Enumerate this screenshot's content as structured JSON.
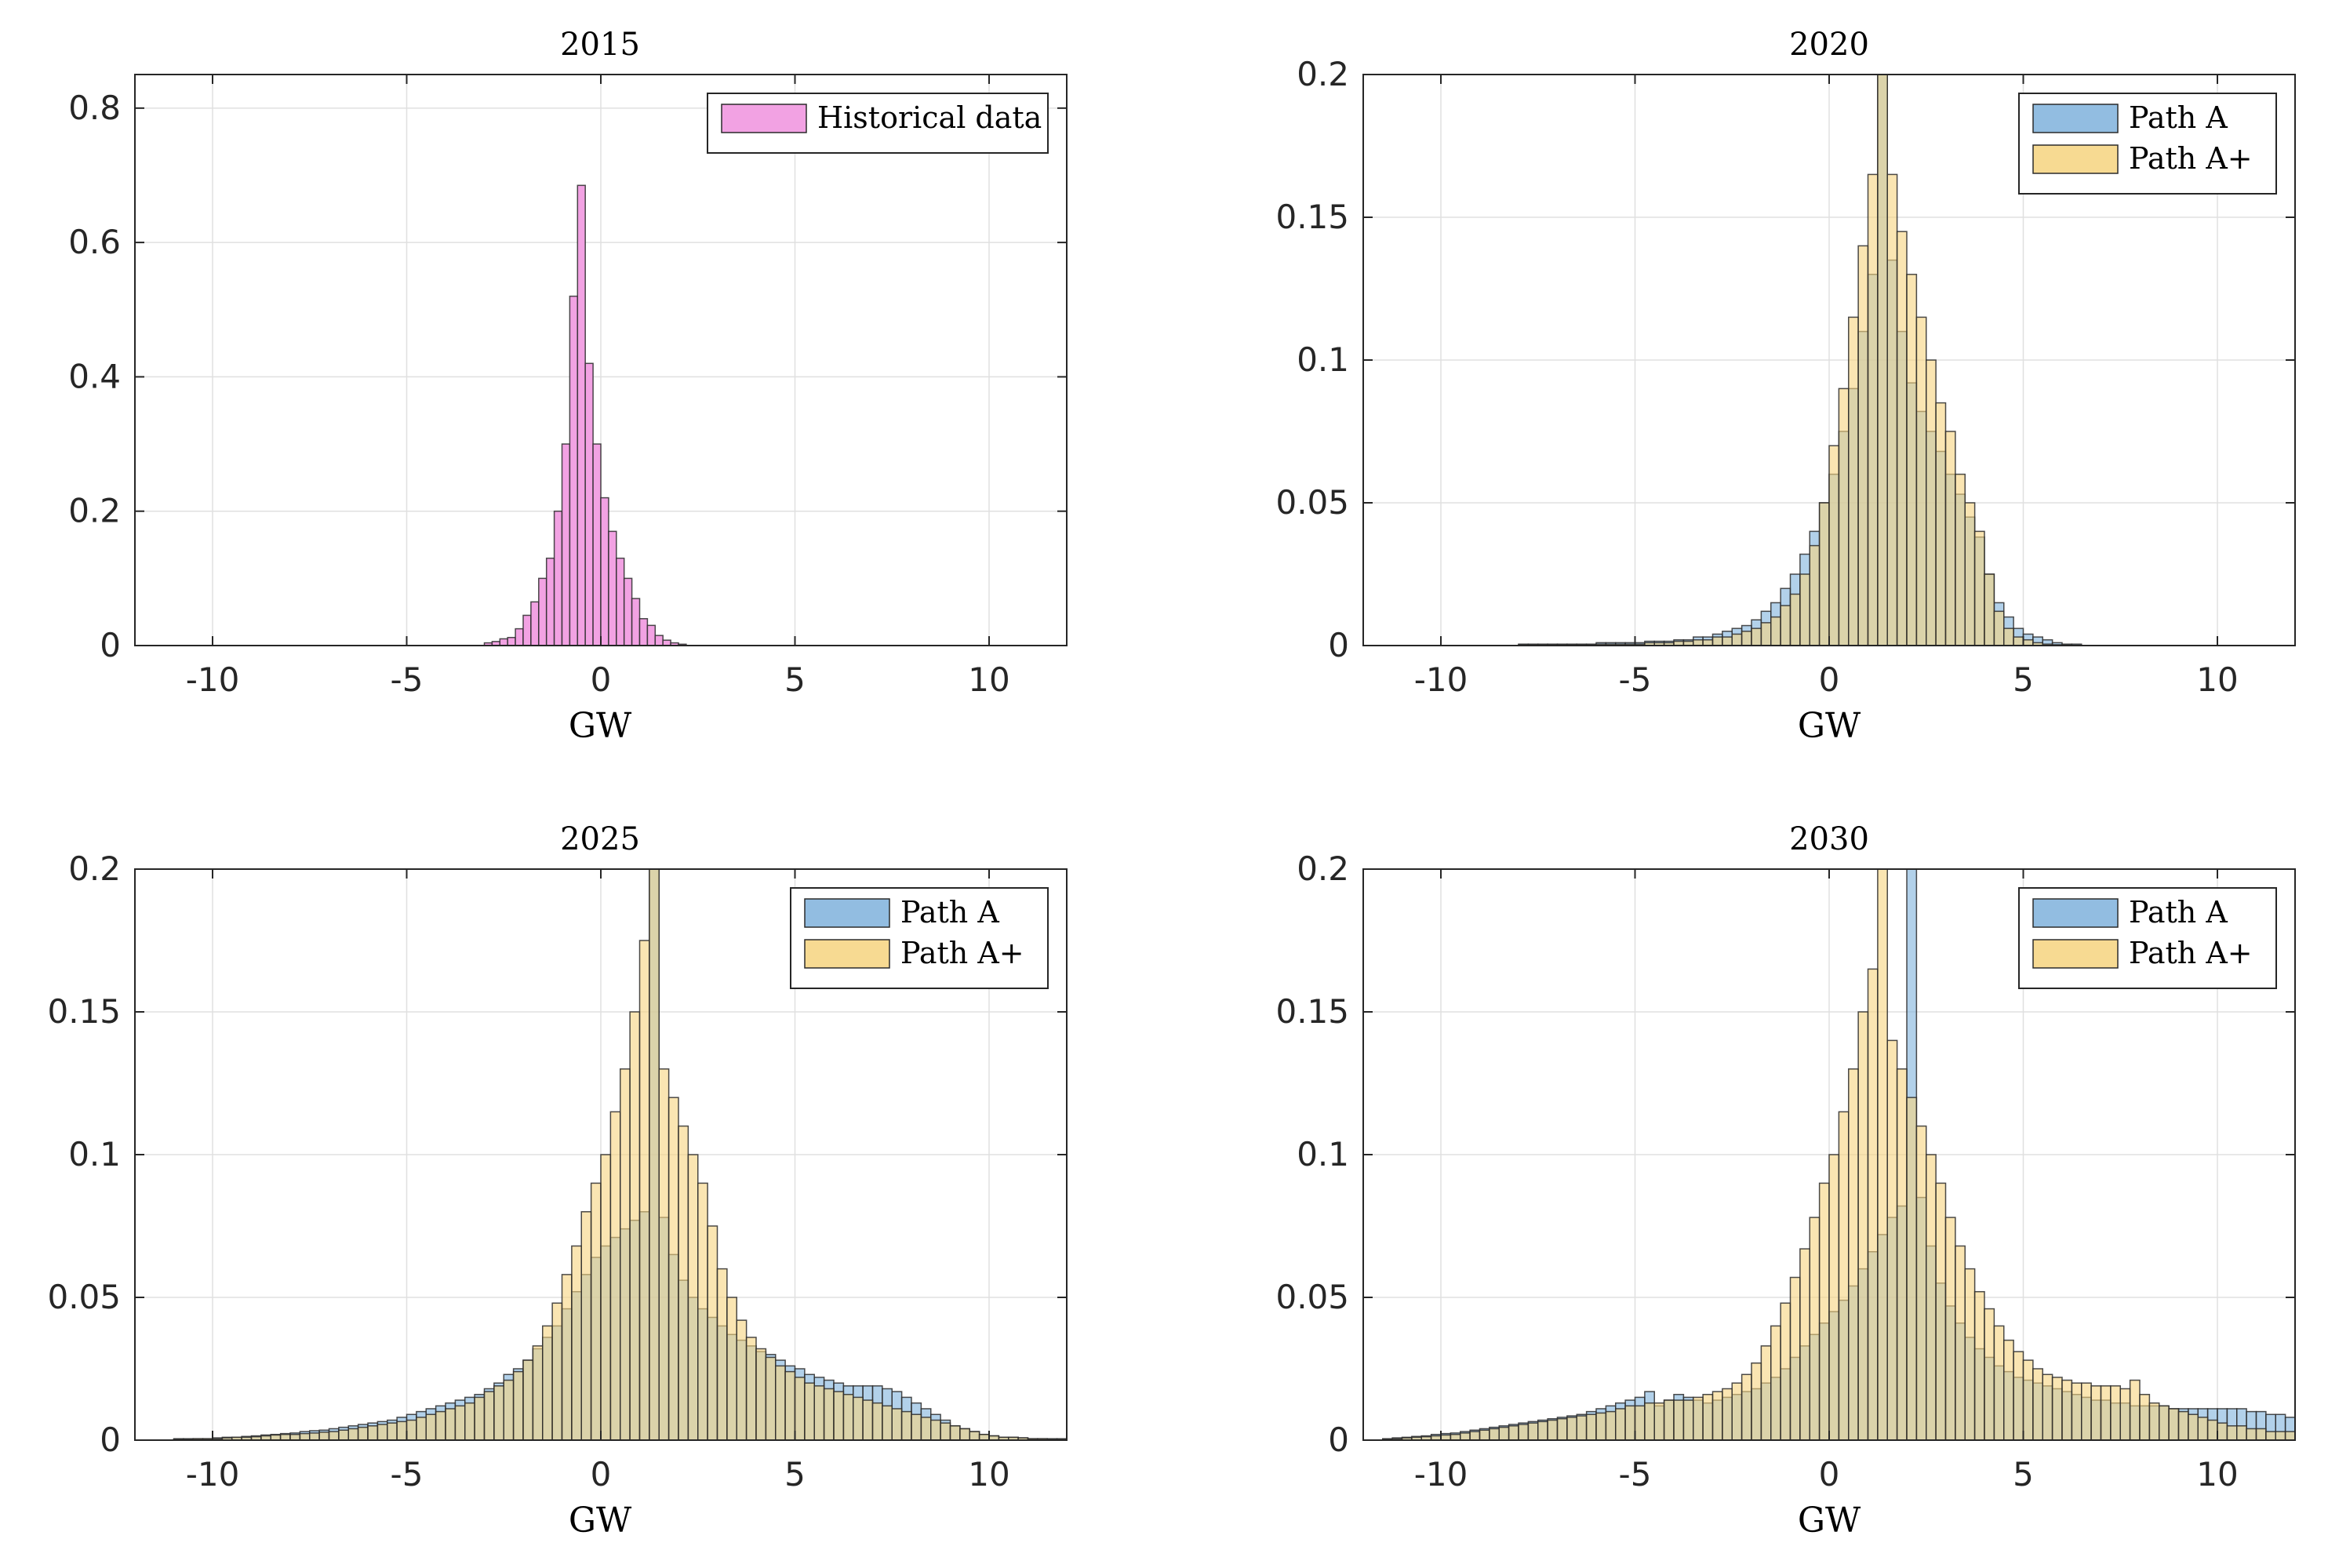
{
  "colors": {
    "historical": "#f2a2e3",
    "path_a": "#7fb2dc",
    "path_a_plus": "#f6d47f",
    "overlap": "#b6b47d",
    "bar_edge": "#2b2b2b",
    "grid": "#e0e0e0",
    "axes": "#262626"
  },
  "chart_data": [
    {
      "type": "bar",
      "title": "2015",
      "xlabel": "GW",
      "ylabel": "",
      "xlim": [
        -12,
        12
      ],
      "ylim": [
        0,
        0.85
      ],
      "xticks": [
        -10,
        -5,
        0,
        5,
        10
      ],
      "xtick_labels": [
        "-10",
        "-5",
        "0",
        "5",
        "10"
      ],
      "yticks": [
        0,
        0.2,
        0.4,
        0.6,
        0.8
      ],
      "ytick_labels": [
        "0",
        "0.2",
        "0.4",
        "0.6",
        "0.8"
      ],
      "grid": true,
      "legend_position": "top-right",
      "bin_width": 0.2,
      "series": [
        {
          "name": "Historical data",
          "color_key": "historical",
          "bin_start": -3.0,
          "values": [
            0.004,
            0.006,
            0.01,
            0.012,
            0.025,
            0.045,
            0.065,
            0.1,
            0.13,
            0.2,
            0.3,
            0.52,
            0.685,
            0.42,
            0.3,
            0.22,
            0.17,
            0.13,
            0.1,
            0.07,
            0.04,
            0.03,
            0.015,
            0.008,
            0.004,
            0.002
          ]
        }
      ]
    },
    {
      "type": "bar",
      "title": "2020",
      "xlabel": "GW",
      "ylabel": "",
      "xlim": [
        -12,
        12
      ],
      "ylim": [
        0,
        0.2
      ],
      "xticks": [
        -10,
        -5,
        0,
        5,
        10
      ],
      "xtick_labels": [
        "-10",
        "-5",
        "0",
        "5",
        "10"
      ],
      "yticks": [
        0,
        0.05,
        0.1,
        0.15,
        0.2
      ],
      "ytick_labels": [
        "0",
        "0.05",
        "0.1",
        "0.15",
        "0.2"
      ],
      "grid": true,
      "legend_position": "top-right",
      "bin_width": 0.25,
      "series": [
        {
          "name": "Path A",
          "color_key": "path_a",
          "bin_start": -8.0,
          "values": [
            0.0005,
            0.0005,
            0.0005,
            0.0005,
            0.0005,
            0.0005,
            0.0005,
            0.0005,
            0.001,
            0.001,
            0.001,
            0.001,
            0.001,
            0.0015,
            0.0015,
            0.0015,
            0.002,
            0.002,
            0.003,
            0.003,
            0.004,
            0.005,
            0.006,
            0.007,
            0.009,
            0.012,
            0.015,
            0.02,
            0.025,
            0.032,
            0.04,
            0.05,
            0.06,
            0.075,
            0.09,
            0.11,
            0.13,
            0.2,
            0.135,
            0.11,
            0.092,
            0.082,
            0.075,
            0.068,
            0.06,
            0.053,
            0.045,
            0.038,
            0.025,
            0.015,
            0.01,
            0.006,
            0.004,
            0.003,
            0.002,
            0.001,
            0.0005,
            0.0005
          ]
        },
        {
          "name": "Path A+",
          "color_key": "path_a_plus",
          "bin_start": -8.0,
          "values": [
            0.0003,
            0.0003,
            0.0003,
            0.0003,
            0.0003,
            0.0003,
            0.0003,
            0.0003,
            0.0005,
            0.0005,
            0.0005,
            0.0005,
            0.0005,
            0.001,
            0.001,
            0.001,
            0.0015,
            0.0015,
            0.002,
            0.002,
            0.003,
            0.003,
            0.004,
            0.005,
            0.006,
            0.008,
            0.01,
            0.014,
            0.018,
            0.025,
            0.035,
            0.05,
            0.07,
            0.09,
            0.115,
            0.14,
            0.165,
            0.2,
            0.165,
            0.145,
            0.13,
            0.115,
            0.1,
            0.085,
            0.075,
            0.06,
            0.05,
            0.04,
            0.025,
            0.012,
            0.006,
            0.003,
            0.002,
            0.001,
            0.0005,
            0.0003,
            0.0002,
            0.0001
          ]
        }
      ]
    },
    {
      "type": "bar",
      "title": "2025",
      "xlabel": "GW",
      "ylabel": "",
      "xlim": [
        -12,
        12
      ],
      "ylim": [
        0,
        0.2
      ],
      "xticks": [
        -10,
        -5,
        0,
        5,
        10
      ],
      "xtick_labels": [
        "-10",
        "-5",
        "0",
        "5",
        "10"
      ],
      "yticks": [
        0,
        0.05,
        0.1,
        0.15,
        0.2
      ],
      "ytick_labels": [
        "0",
        "0.05",
        "0.1",
        "0.15",
        "0.2"
      ],
      "grid": true,
      "legend_position": "top-right",
      "bin_width": 0.25,
      "series": [
        {
          "name": "Path A",
          "color_key": "path_a",
          "bin_start": -11.0,
          "values": [
            0.0005,
            0.0005,
            0.0005,
            0.0005,
            0.0008,
            0.001,
            0.001,
            0.0013,
            0.0015,
            0.0018,
            0.002,
            0.0023,
            0.0025,
            0.003,
            0.0033,
            0.0035,
            0.004,
            0.0045,
            0.005,
            0.0055,
            0.006,
            0.0065,
            0.007,
            0.008,
            0.009,
            0.01,
            0.011,
            0.012,
            0.013,
            0.014,
            0.015,
            0.016,
            0.018,
            0.02,
            0.023,
            0.025,
            0.028,
            0.032,
            0.036,
            0.04,
            0.046,
            0.052,
            0.058,
            0.064,
            0.068,
            0.071,
            0.074,
            0.077,
            0.08,
            0.2,
            0.078,
            0.065,
            0.056,
            0.05,
            0.046,
            0.043,
            0.04,
            0.037,
            0.035,
            0.033,
            0.031,
            0.03,
            0.028,
            0.026,
            0.025,
            0.023,
            0.022,
            0.021,
            0.02,
            0.019,
            0.019,
            0.019,
            0.019,
            0.018,
            0.017,
            0.015,
            0.013,
            0.011,
            0.009,
            0.007,
            0.005,
            0.004,
            0.003,
            0.002,
            0.0015,
            0.001,
            0.001,
            0.0008,
            0.0005,
            0.0005,
            0.0005,
            0.0005,
            0.0005,
            0.0005,
            0.0005,
            0.0005
          ]
        },
        {
          "name": "Path A+",
          "color_key": "path_a_plus",
          "bin_start": -11.0,
          "values": [
            0.0003,
            0.0003,
            0.0005,
            0.0005,
            0.0005,
            0.0008,
            0.001,
            0.001,
            0.0012,
            0.0015,
            0.0018,
            0.002,
            0.002,
            0.0023,
            0.0025,
            0.0028,
            0.003,
            0.0035,
            0.004,
            0.0045,
            0.005,
            0.0055,
            0.006,
            0.0065,
            0.007,
            0.008,
            0.009,
            0.01,
            0.011,
            0.012,
            0.013,
            0.015,
            0.017,
            0.019,
            0.021,
            0.024,
            0.028,
            0.033,
            0.04,
            0.048,
            0.058,
            0.068,
            0.08,
            0.09,
            0.1,
            0.115,
            0.13,
            0.15,
            0.175,
            0.2,
            0.13,
            0.12,
            0.11,
            0.1,
            0.09,
            0.075,
            0.06,
            0.05,
            0.042,
            0.036,
            0.032,
            0.029,
            0.026,
            0.024,
            0.022,
            0.02,
            0.019,
            0.018,
            0.017,
            0.016,
            0.015,
            0.014,
            0.013,
            0.012,
            0.011,
            0.01,
            0.009,
            0.008,
            0.007,
            0.006,
            0.005,
            0.004,
            0.003,
            0.002,
            0.0015,
            0.001,
            0.001,
            0.0008,
            0.0005,
            0.0005,
            0.0003,
            0.0003,
            0.0003,
            0.0003,
            0.0003,
            0.0003
          ]
        }
      ]
    },
    {
      "type": "bar",
      "title": "2030",
      "xlabel": "GW",
      "ylabel": "",
      "xlim": [
        -12,
        12
      ],
      "ylim": [
        0,
        0.2
      ],
      "xticks": [
        -10,
        -5,
        0,
        5,
        10
      ],
      "xtick_labels": [
        "-10",
        "-5",
        "0",
        "5",
        "10"
      ],
      "yticks": [
        0,
        0.05,
        0.1,
        0.15,
        0.2
      ],
      "ytick_labels": [
        "0",
        "0.05",
        "0.1",
        "0.15",
        "0.2"
      ],
      "grid": true,
      "legend_position": "top-right",
      "bin_width": 0.25,
      "series": [
        {
          "name": "Path A",
          "color_key": "path_a",
          "bin_start": -11.5,
          "values": [
            0.0005,
            0.0008,
            0.001,
            0.0013,
            0.0015,
            0.002,
            0.0023,
            0.0025,
            0.003,
            0.0035,
            0.004,
            0.0045,
            0.005,
            0.0055,
            0.006,
            0.0065,
            0.007,
            0.0075,
            0.008,
            0.0085,
            0.009,
            0.01,
            0.011,
            0.012,
            0.013,
            0.014,
            0.015,
            0.017,
            0.012,
            0.014,
            0.016,
            0.015,
            0.014,
            0.013,
            0.014,
            0.015,
            0.016,
            0.017,
            0.018,
            0.02,
            0.022,
            0.025,
            0.029,
            0.033,
            0.037,
            0.041,
            0.045,
            0.049,
            0.054,
            0.06,
            0.066,
            0.072,
            0.078,
            0.082,
            0.2,
            0.085,
            0.068,
            0.055,
            0.047,
            0.041,
            0.036,
            0.032,
            0.029,
            0.026,
            0.024,
            0.022,
            0.021,
            0.02,
            0.019,
            0.018,
            0.017,
            0.016,
            0.015,
            0.014,
            0.014,
            0.013,
            0.013,
            0.012,
            0.012,
            0.012,
            0.012,
            0.011,
            0.011,
            0.011,
            0.011,
            0.011,
            0.011,
            0.011,
            0.011,
            0.01,
            0.01,
            0.009,
            0.009,
            0.008,
            0.008,
            0.007,
            0.007,
            0.006,
            0.006,
            0.005,
            0.005,
            0.004,
            0.004,
            0.003,
            0.003,
            0.002,
            0.002
          ]
        },
        {
          "name": "Path A+",
          "color_key": "path_a_plus",
          "bin_start": -11.5,
          "values": [
            0.0003,
            0.0005,
            0.0008,
            0.001,
            0.0012,
            0.0015,
            0.0018,
            0.002,
            0.0025,
            0.003,
            0.0035,
            0.004,
            0.0045,
            0.005,
            0.0055,
            0.006,
            0.0065,
            0.007,
            0.0075,
            0.008,
            0.0085,
            0.009,
            0.0095,
            0.01,
            0.011,
            0.012,
            0.012,
            0.013,
            0.013,
            0.014,
            0.014,
            0.014,
            0.015,
            0.016,
            0.017,
            0.018,
            0.02,
            0.023,
            0.027,
            0.033,
            0.04,
            0.048,
            0.057,
            0.067,
            0.078,
            0.09,
            0.1,
            0.115,
            0.13,
            0.15,
            0.165,
            0.2,
            0.14,
            0.13,
            0.12,
            0.11,
            0.1,
            0.09,
            0.078,
            0.068,
            0.06,
            0.052,
            0.046,
            0.04,
            0.035,
            0.031,
            0.028,
            0.025,
            0.023,
            0.022,
            0.021,
            0.02,
            0.02,
            0.019,
            0.019,
            0.019,
            0.018,
            0.021,
            0.016,
            0.013,
            0.012,
            0.011,
            0.01,
            0.009,
            0.008,
            0.007,
            0.006,
            0.005,
            0.005,
            0.004,
            0.004,
            0.003,
            0.003,
            0.003,
            0.002,
            0.002,
            0.002,
            0.0015,
            0.0015,
            0.001,
            0.001,
            0.001,
            0.0008,
            0.0005,
            0.0005,
            0.0003,
            0.0003
          ]
        }
      ]
    }
  ]
}
